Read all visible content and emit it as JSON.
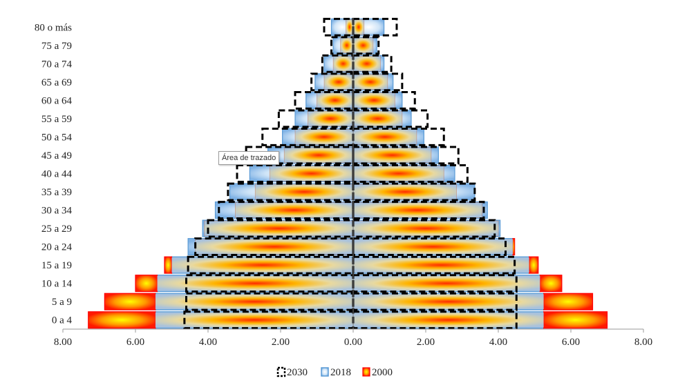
{
  "chart_data": {
    "type": "bar",
    "orientation": "horizontal",
    "layout": "population-pyramid",
    "categories": [
      "0 a 4",
      "5 a 9",
      "10 a 14",
      "15 a 19",
      "20 a 24",
      "25 a 29",
      "30 a 34",
      "35 a 39",
      "40 a 44",
      "45 a 49",
      "50 a 54",
      "55 a 59",
      "60 a 64",
      "65 a 69",
      "70 a 74",
      "75 a 79",
      "80 o más"
    ],
    "series": [
      {
        "name": "2030",
        "style": "dashed-outline",
        "left": [
          4.65,
          4.6,
          4.6,
          4.55,
          4.35,
          4.0,
          3.7,
          3.45,
          3.2,
          2.95,
          2.5,
          2.05,
          1.6,
          1.15,
          0.85,
          0.6,
          0.8
        ],
        "right": [
          4.5,
          4.5,
          4.5,
          4.45,
          4.2,
          3.9,
          3.6,
          3.35,
          3.15,
          2.9,
          2.5,
          2.05,
          1.7,
          1.35,
          1.05,
          0.7,
          1.2
        ]
      },
      {
        "name": "2018",
        "style": "blue-gradient",
        "left": [
          5.45,
          5.45,
          5.4,
          5.0,
          4.55,
          4.15,
          3.8,
          3.4,
          2.85,
          2.35,
          1.95,
          1.6,
          1.3,
          1.05,
          0.8,
          0.55,
          0.6
        ],
        "right": [
          5.25,
          5.25,
          5.15,
          4.85,
          4.4,
          4.05,
          3.7,
          3.35,
          2.8,
          2.35,
          1.95,
          1.6,
          1.35,
          1.1,
          0.85,
          0.65,
          0.85
        ]
      },
      {
        "name": "2000",
        "style": "red-yellow-gradient",
        "left": [
          7.3,
          6.85,
          6.0,
          5.2,
          4.35,
          4.1,
          3.25,
          2.7,
          2.3,
          1.9,
          1.6,
          1.25,
          1.0,
          0.8,
          0.55,
          0.35,
          0.2
        ],
        "right": [
          7.0,
          6.6,
          5.75,
          5.1,
          4.45,
          4.0,
          3.55,
          2.85,
          2.5,
          2.15,
          1.75,
          1.35,
          1.15,
          0.95,
          0.75,
          0.55,
          0.3
        ]
      }
    ],
    "xaxis": {
      "ticks": [
        "8.00",
        "6.00",
        "4.00",
        "2.00",
        "0.00",
        "2.00",
        "4.00",
        "6.00",
        "8.00"
      ],
      "range": [
        -8,
        8
      ]
    },
    "legend": {
      "position": "bottom",
      "entries": [
        "2030",
        "2018",
        "2000"
      ]
    },
    "grid": false,
    "colors": {
      "series_2018": "#5b9bd5",
      "series_2000": "#ff0000",
      "series_2000_center": "#ffff00",
      "series_2030": "#000000"
    },
    "tooltip": "Área de trazado"
  }
}
